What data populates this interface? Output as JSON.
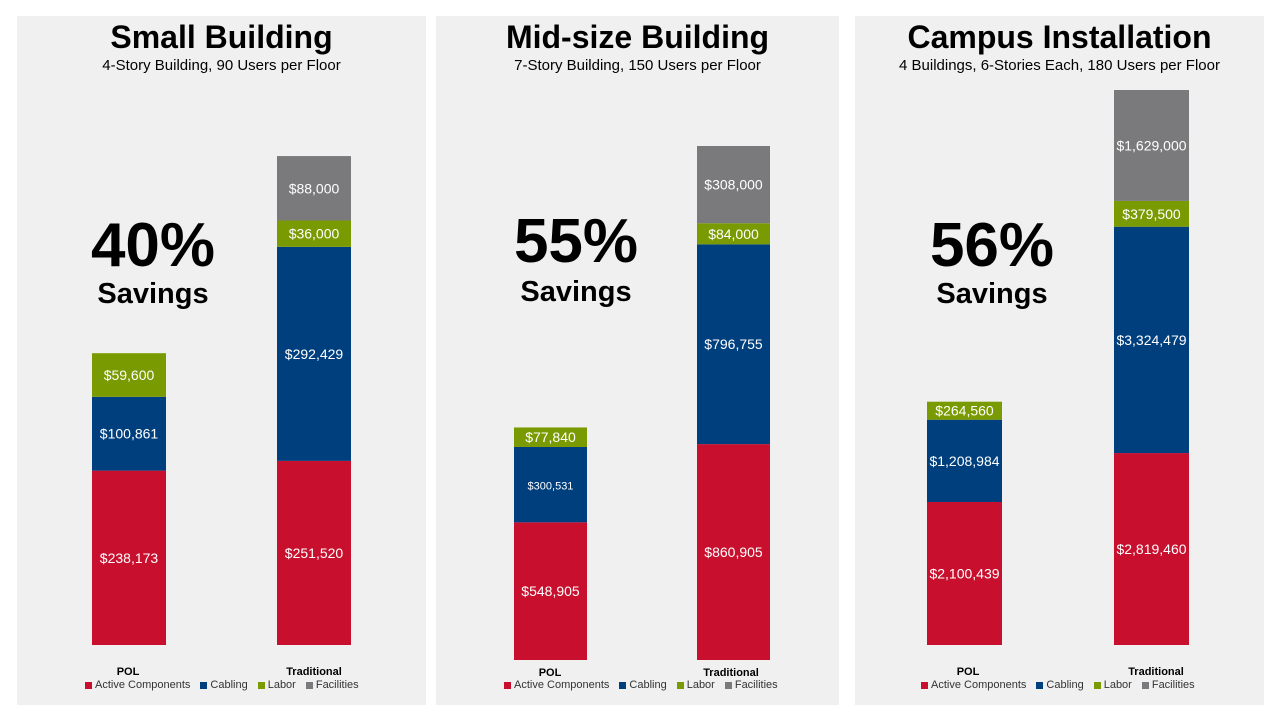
{
  "colors": {
    "active": "#c8102e",
    "cabling": "#003f7d",
    "labor": "#7a9a01",
    "facilities": "#7a7a7c",
    "panel_bg": "#f0f0f0"
  },
  "legend": [
    "Active Components",
    "Cabling",
    "Labor",
    "Facilities"
  ],
  "chart_data": [
    {
      "type": "bar",
      "stacked": true,
      "title": "Small Building",
      "subtitle": "4-Story Building, 90 Users per Floor",
      "savings_pct": "40%",
      "savings_label": "Savings",
      "categories": [
        "POL",
        "Traditional"
      ],
      "series": [
        {
          "name": "Active Components",
          "values": [
            238173,
            251520
          ],
          "labels": [
            "$238,173",
            "$251,520"
          ]
        },
        {
          "name": "Cabling",
          "values": [
            100861,
            292429
          ],
          "labels": [
            "$100,861",
            "$292,429"
          ]
        },
        {
          "name": "Labor",
          "values": [
            59600,
            36000
          ],
          "labels": [
            "$59,600",
            "$36,000"
          ]
        },
        {
          "name": "Facilities",
          "values": [
            0,
            88000
          ],
          "labels": [
            "",
            "$88,000"
          ]
        }
      ]
    },
    {
      "type": "bar",
      "stacked": true,
      "title": "Mid-size Building",
      "subtitle": "7-Story Building, 150 Users per Floor",
      "savings_pct": "55%",
      "savings_label": "Savings",
      "categories": [
        "POL",
        "Traditional"
      ],
      "series": [
        {
          "name": "Active Components",
          "values": [
            548905,
            860905
          ],
          "labels": [
            "$548,905",
            "$860,905"
          ]
        },
        {
          "name": "Cabling",
          "values": [
            300531,
            796755
          ],
          "labels": [
            "$300,531",
            "$796,755"
          ]
        },
        {
          "name": "Labor",
          "values": [
            77840,
            84000
          ],
          "labels": [
            "$77,840",
            "$84,000"
          ]
        },
        {
          "name": "Facilities",
          "values": [
            0,
            308000
          ],
          "labels": [
            "",
            "$308,000"
          ]
        }
      ]
    },
    {
      "type": "bar",
      "stacked": true,
      "title": "Campus Installation",
      "subtitle": "4 Buildings, 6-Stories Each, 180 Users per Floor",
      "savings_pct": "56%",
      "savings_label": "Savings",
      "categories": [
        "POL",
        "Traditional"
      ],
      "series": [
        {
          "name": "Active Components",
          "values": [
            2100439,
            2819460
          ],
          "labels": [
            "$2,100,439",
            "$2,819,460"
          ]
        },
        {
          "name": "Cabling",
          "values": [
            1208984,
            3324479
          ],
          "labels": [
            "$1,208,984",
            "$3,324,479"
          ]
        },
        {
          "name": "Labor",
          "values": [
            264560,
            379500
          ],
          "labels": [
            "$264,560",
            "$379,500"
          ]
        },
        {
          "name": "Facilities",
          "values": [
            0,
            1629000
          ],
          "labels": [
            "",
            "$1,629,000"
          ]
        }
      ]
    }
  ]
}
